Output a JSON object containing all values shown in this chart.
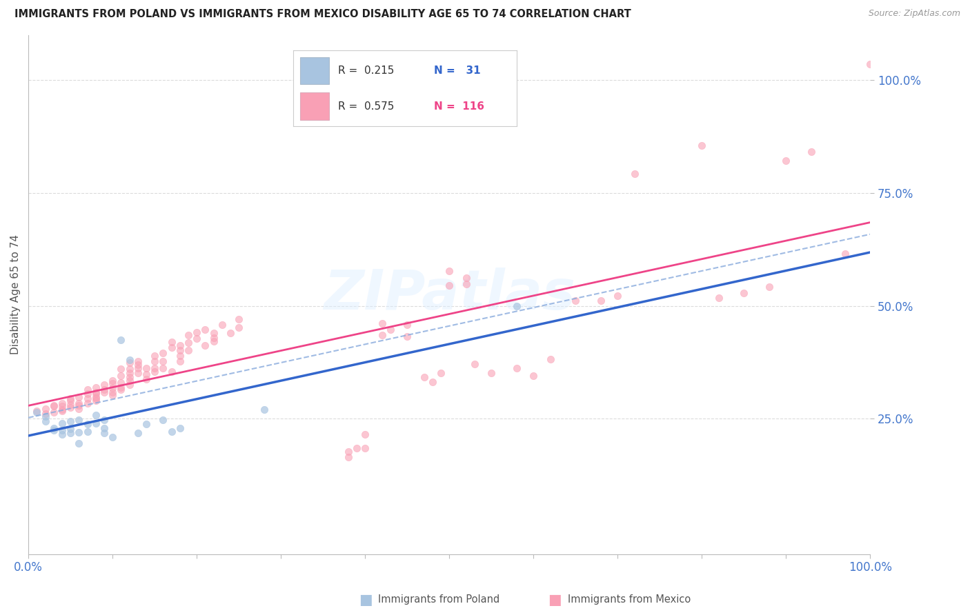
{
  "title": "IMMIGRANTS FROM POLAND VS IMMIGRANTS FROM MEXICO DISABILITY AGE 65 TO 74 CORRELATION CHART",
  "source": "Source: ZipAtlas.com",
  "ylabel": "Disability Age 65 to 74",
  "background_color": "#ffffff",
  "grid_color": "#cccccc",
  "watermark_text": "ZIPatlas",
  "legend_poland": {
    "R": "0.215",
    "N": "31"
  },
  "legend_mexico": {
    "R": "0.575",
    "N": "116"
  },
  "poland_color": "#a8c4e0",
  "mexico_color": "#f9a0b5",
  "poland_line_color": "#3366cc",
  "mexico_line_color": "#ee4488",
  "poland_dash_color": "#88aadd",
  "xlim": [
    0.0,
    1.0
  ],
  "ylim": [
    -0.05,
    1.1
  ],
  "poland_scatter": [
    [
      0.01,
      0.265
    ],
    [
      0.02,
      0.255
    ],
    [
      0.02,
      0.245
    ],
    [
      0.03,
      0.225
    ],
    [
      0.03,
      0.23
    ],
    [
      0.04,
      0.215
    ],
    [
      0.04,
      0.225
    ],
    [
      0.04,
      0.24
    ],
    [
      0.05,
      0.245
    ],
    [
      0.05,
      0.228
    ],
    [
      0.05,
      0.218
    ],
    [
      0.06,
      0.195
    ],
    [
      0.06,
      0.22
    ],
    [
      0.06,
      0.248
    ],
    [
      0.07,
      0.238
    ],
    [
      0.07,
      0.222
    ],
    [
      0.08,
      0.258
    ],
    [
      0.08,
      0.24
    ],
    [
      0.09,
      0.248
    ],
    [
      0.09,
      0.23
    ],
    [
      0.09,
      0.218
    ],
    [
      0.1,
      0.21
    ],
    [
      0.11,
      0.425
    ],
    [
      0.12,
      0.38
    ],
    [
      0.13,
      0.218
    ],
    [
      0.14,
      0.238
    ],
    [
      0.16,
      0.248
    ],
    [
      0.17,
      0.222
    ],
    [
      0.18,
      0.23
    ],
    [
      0.28,
      0.27
    ],
    [
      0.58,
      0.5
    ]
  ],
  "mexico_scatter": [
    [
      0.01,
      0.268
    ],
    [
      0.02,
      0.262
    ],
    [
      0.02,
      0.272
    ],
    [
      0.03,
      0.278
    ],
    [
      0.03,
      0.265
    ],
    [
      0.03,
      0.28
    ],
    [
      0.04,
      0.27
    ],
    [
      0.04,
      0.285
    ],
    [
      0.04,
      0.278
    ],
    [
      0.04,
      0.268
    ],
    [
      0.05,
      0.275
    ],
    [
      0.05,
      0.29
    ],
    [
      0.05,
      0.282
    ],
    [
      0.05,
      0.295
    ],
    [
      0.06,
      0.285
    ],
    [
      0.06,
      0.298
    ],
    [
      0.06,
      0.272
    ],
    [
      0.06,
      0.28
    ],
    [
      0.07,
      0.305
    ],
    [
      0.07,
      0.315
    ],
    [
      0.07,
      0.295
    ],
    [
      0.07,
      0.285
    ],
    [
      0.08,
      0.298
    ],
    [
      0.08,
      0.308
    ],
    [
      0.08,
      0.29
    ],
    [
      0.08,
      0.305
    ],
    [
      0.08,
      0.32
    ],
    [
      0.08,
      0.295
    ],
    [
      0.09,
      0.315
    ],
    [
      0.09,
      0.325
    ],
    [
      0.09,
      0.308
    ],
    [
      0.1,
      0.328
    ],
    [
      0.1,
      0.318
    ],
    [
      0.1,
      0.308
    ],
    [
      0.1,
      0.335
    ],
    [
      0.1,
      0.302
    ],
    [
      0.11,
      0.33
    ],
    [
      0.11,
      0.32
    ],
    [
      0.11,
      0.345
    ],
    [
      0.11,
      0.36
    ],
    [
      0.11,
      0.315
    ],
    [
      0.12,
      0.352
    ],
    [
      0.12,
      0.335
    ],
    [
      0.12,
      0.325
    ],
    [
      0.12,
      0.36
    ],
    [
      0.12,
      0.375
    ],
    [
      0.12,
      0.342
    ],
    [
      0.13,
      0.362
    ],
    [
      0.13,
      0.352
    ],
    [
      0.13,
      0.378
    ],
    [
      0.13,
      0.37
    ],
    [
      0.14,
      0.348
    ],
    [
      0.14,
      0.338
    ],
    [
      0.14,
      0.362
    ],
    [
      0.15,
      0.378
    ],
    [
      0.15,
      0.355
    ],
    [
      0.15,
      0.39
    ],
    [
      0.15,
      0.362
    ],
    [
      0.16,
      0.395
    ],
    [
      0.16,
      0.362
    ],
    [
      0.16,
      0.378
    ],
    [
      0.17,
      0.408
    ],
    [
      0.17,
      0.355
    ],
    [
      0.17,
      0.42
    ],
    [
      0.18,
      0.39
    ],
    [
      0.18,
      0.402
    ],
    [
      0.18,
      0.412
    ],
    [
      0.18,
      0.378
    ],
    [
      0.19,
      0.418
    ],
    [
      0.19,
      0.435
    ],
    [
      0.19,
      0.402
    ],
    [
      0.2,
      0.428
    ],
    [
      0.2,
      0.442
    ],
    [
      0.21,
      0.412
    ],
    [
      0.21,
      0.448
    ],
    [
      0.22,
      0.43
    ],
    [
      0.22,
      0.422
    ],
    [
      0.22,
      0.44
    ],
    [
      0.23,
      0.458
    ],
    [
      0.24,
      0.44
    ],
    [
      0.25,
      0.47
    ],
    [
      0.25,
      0.452
    ],
    [
      0.38,
      0.178
    ],
    [
      0.38,
      0.165
    ],
    [
      0.39,
      0.185
    ],
    [
      0.4,
      0.215
    ],
    [
      0.4,
      0.185
    ],
    [
      0.42,
      0.435
    ],
    [
      0.42,
      0.462
    ],
    [
      0.43,
      0.448
    ],
    [
      0.45,
      0.458
    ],
    [
      0.45,
      0.432
    ],
    [
      0.47,
      0.342
    ],
    [
      0.48,
      0.332
    ],
    [
      0.49,
      0.352
    ],
    [
      0.5,
      0.578
    ],
    [
      0.5,
      0.545
    ],
    [
      0.52,
      0.562
    ],
    [
      0.52,
      0.548
    ],
    [
      0.53,
      0.372
    ],
    [
      0.55,
      0.352
    ],
    [
      0.58,
      0.362
    ],
    [
      0.6,
      0.345
    ],
    [
      0.62,
      0.382
    ],
    [
      0.65,
      0.512
    ],
    [
      0.68,
      0.512
    ],
    [
      0.7,
      0.522
    ],
    [
      0.72,
      0.792
    ],
    [
      0.8,
      0.855
    ],
    [
      0.82,
      0.518
    ],
    [
      0.85,
      0.528
    ],
    [
      0.88,
      0.542
    ],
    [
      0.9,
      0.822
    ],
    [
      0.93,
      0.842
    ],
    [
      0.97,
      0.615
    ],
    [
      1.0,
      1.035
    ]
  ]
}
